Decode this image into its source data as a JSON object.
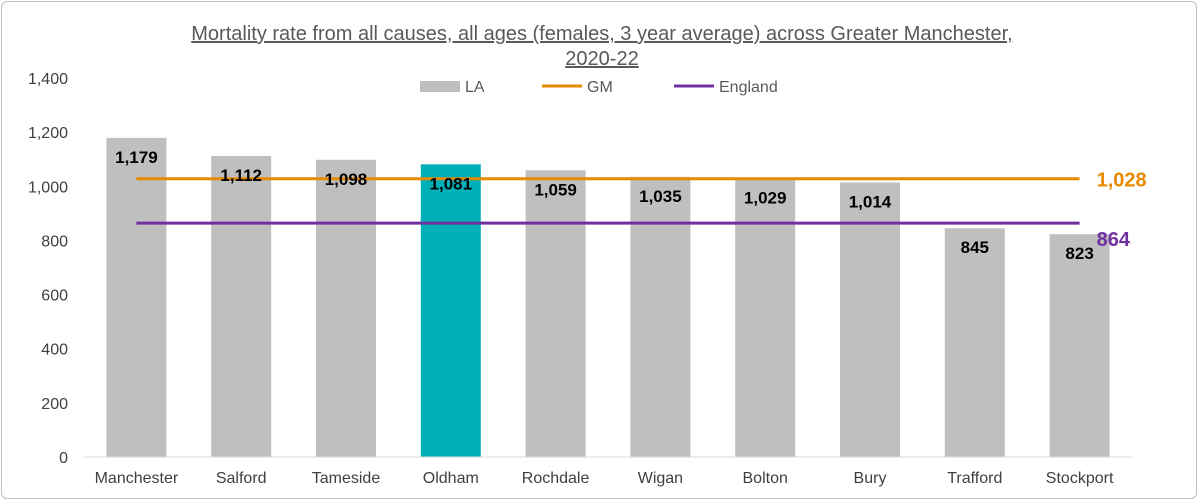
{
  "chart_data": {
    "type": "bar",
    "title_line1": "Mortality rate from all causes, all ages (females, 3 year average) across Greater Manchester,",
    "title_line2": "2020-22",
    "categories": [
      "Manchester",
      "Salford",
      "Tameside",
      "Oldham",
      "Rochdale",
      "Wigan",
      "Bolton",
      "Bury",
      "Trafford",
      "Stockport"
    ],
    "series": [
      {
        "name": "LA",
        "values": [
          1179,
          1112,
          1098,
          1081,
          1059,
          1035,
          1029,
          1014,
          845,
          823
        ],
        "labels": [
          "1,179",
          "1,112",
          "1,098",
          "1,081",
          "1,059",
          "1,035",
          "1,029",
          "1,014",
          "845",
          "823"
        ],
        "color": "#bfbfbf",
        "highlight_category": "Oldham",
        "highlight_color": "#00b0b9"
      },
      {
        "name": "GM",
        "value": 1028,
        "label": "1,028",
        "color": "#e88a00",
        "kind": "line"
      },
      {
        "name": "England",
        "value": 864,
        "label": "864",
        "color": "#7030a0",
        "kind": "line"
      }
    ],
    "ylim": [
      0,
      1400
    ],
    "yticks": [
      0,
      200,
      400,
      600,
      800,
      1000,
      1200,
      1400
    ],
    "ytick_labels": [
      "0",
      "200",
      "400",
      "600",
      "800",
      "1,000",
      "1,200",
      "1,400"
    ],
    "grid": false,
    "legend_position": "top-center"
  }
}
